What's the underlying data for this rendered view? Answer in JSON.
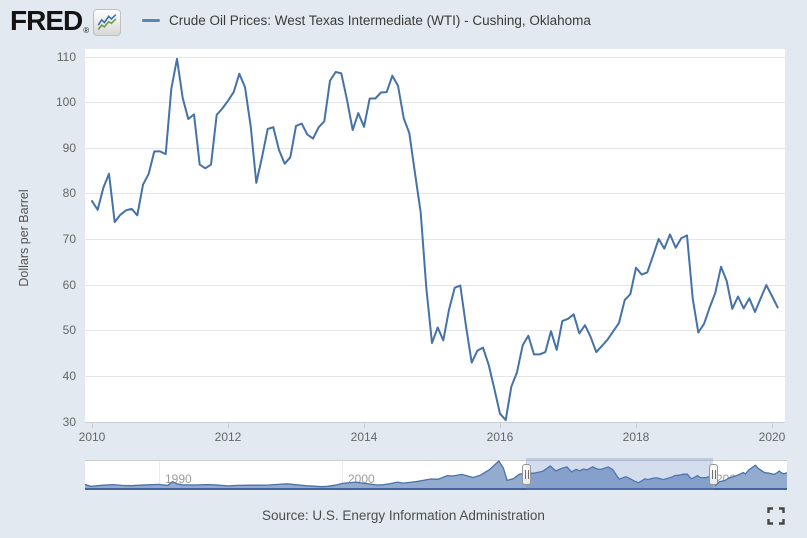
{
  "header": {
    "logo_text": "FRED",
    "registered_mark": "®",
    "legend": {
      "series_label": "Crude Oil Prices: West Texas Intermediate (WTI) - Cushing, Oklahoma",
      "series_color": "#4572a7"
    }
  },
  "chart_data": {
    "type": "line",
    "title": "Crude Oil Prices: West Texas Intermediate (WTI) - Cushing, Oklahoma",
    "xlabel": "",
    "ylabel": "Dollars per Barrel",
    "grid": "horizontal-only",
    "line_color": "#4572a7",
    "plot_background": "#ffffff",
    "page_background": "#e2e9f0",
    "ylim": [
      30,
      110
    ],
    "y_ticks": [
      110,
      100,
      90,
      80,
      70,
      60,
      50,
      40,
      30
    ],
    "x_tick_years": [
      2010,
      2012,
      2014,
      2016,
      2018,
      2020
    ],
    "x_start": "2010-01",
    "x_step_months": 1,
    "values": [
      78.3,
      76.4,
      81.2,
      84.3,
      73.7,
      75.3,
      76.3,
      76.6,
      75.2,
      81.9,
      84.3,
      89.2,
      89.2,
      88.6,
      102.9,
      109.5,
      100.9,
      96.3,
      97.3,
      86.3,
      85.5,
      86.3,
      97.2,
      98.6,
      100.3,
      102.2,
      106.2,
      103.3,
      94.7,
      82.3,
      87.9,
      94.1,
      94.5,
      89.5,
      86.5,
      87.9,
      94.8,
      95.3,
      92.9,
      92.0,
      94.5,
      95.8,
      104.7,
      106.6,
      106.3,
      100.5,
      93.9,
      97.6,
      94.6,
      100.8,
      100.8,
      102.1,
      102.2,
      105.8,
      103.6,
      96.5,
      93.2,
      84.4,
      75.8,
      59.3,
      47.2,
      50.6,
      47.8,
      54.5,
      59.3,
      59.8,
      50.9,
      42.9,
      45.5,
      46.2,
      42.4,
      37.2,
      31.7,
      30.3,
      37.6,
      40.8,
      46.7,
      48.8,
      44.7,
      44.7,
      45.2,
      49.8,
      45.7,
      52.0,
      52.5,
      53.5,
      49.3,
      51.1,
      48.5,
      45.2,
      46.6,
      48.0,
      49.8,
      51.6,
      56.6,
      57.9,
      63.7,
      62.2,
      62.7,
      66.3,
      70.0,
      67.9,
      71.0,
      68.1,
      70.2,
      70.8,
      57.0,
      49.5,
      51.4,
      55.0,
      58.2,
      63.9,
      60.8,
      54.7,
      57.4,
      54.8,
      57.0,
      54.0,
      57.0,
      59.9,
      57.5,
      55.0
    ],
    "navigator": {
      "type": "area",
      "xlim": [
        1986.0,
        2024.17
      ],
      "selected_range": [
        2010.0,
        2020.17
      ],
      "x_tick_years": [
        1990,
        2000,
        2010,
        2020
      ],
      "area_fill": "#92abce",
      "area_line": "#4a72a8",
      "mask_fill": "rgba(102,133,194,0.28)",
      "x": [
        1986.0,
        1986.3,
        1986.6,
        1987.0,
        1987.5,
        1988.0,
        1988.5,
        1989.0,
        1989.5,
        1990.0,
        1990.5,
        1990.75,
        1991.0,
        1991.3,
        1992.0,
        1992.5,
        1993.0,
        1993.8,
        1994.3,
        1995.0,
        1995.5,
        1996.0,
        1996.8,
        1997.0,
        1997.5,
        1998.0,
        1998.9,
        1999.2,
        1999.6,
        2000.0,
        2000.7,
        2001.0,
        2001.9,
        2002.2,
        2002.6,
        2003.0,
        2003.3,
        2004.0,
        2004.8,
        2005.2,
        2005.7,
        2006.0,
        2006.5,
        2006.9,
        2007.1,
        2007.5,
        2008.0,
        2008.5,
        2008.75,
        2008.95,
        2009.3,
        2009.6,
        2010.0,
        2010.4,
        2010.9,
        2011.3,
        2011.6,
        2011.9,
        2012.2,
        2012.45,
        2012.7,
        2012.9,
        2013.1,
        2013.3,
        2013.6,
        2013.9,
        2014.1,
        2014.45,
        2014.7,
        2014.95,
        2015.05,
        2015.4,
        2015.6,
        2015.9,
        2016.1,
        2016.45,
        2016.6,
        2016.9,
        2017.1,
        2017.45,
        2017.95,
        2018.05,
        2018.3,
        2018.55,
        2018.75,
        2018.95,
        2019.05,
        2019.3,
        2019.45,
        2019.75,
        2019.95,
        2020.05,
        2020.15,
        2020.3,
        2020.5,
        2020.8,
        2021.0,
        2021.4,
        2021.8,
        2021.9,
        2022.1,
        2022.45,
        2022.6,
        2022.75,
        2022.95,
        2023.2,
        2023.45,
        2023.6,
        2023.75,
        2023.85,
        2024.0,
        2024.17
      ],
      "values": [
        22,
        13,
        15,
        18,
        21,
        17,
        16,
        18,
        20,
        22,
        17,
        35,
        25,
        20,
        19,
        21,
        20,
        15,
        17,
        18,
        18,
        19,
        24,
        25,
        20,
        16,
        11,
        13,
        18,
        27,
        33,
        29,
        19,
        20,
        26,
        33,
        28,
        35,
        48,
        47,
        64,
        62,
        70,
        60,
        55,
        66,
        93,
        134,
        100,
        41,
        50,
        70,
        78,
        75,
        85,
        110,
        86,
        98,
        106,
        82,
        94,
        87,
        95,
        92,
        106,
        94,
        95,
        106,
        93,
        59,
        47,
        59,
        51,
        37,
        30,
        49,
        45,
        52,
        53,
        45,
        58,
        64,
        66,
        71,
        71,
        50,
        51,
        64,
        55,
        54,
        60,
        57,
        51,
        17,
        35,
        41,
        52,
        63,
        79,
        72,
        92,
        114,
        99,
        90,
        78,
        76,
        70,
        76,
        86,
        78,
        73,
        78
      ]
    }
  },
  "footer": {
    "source": "Source: U.S. Energy Information Administration"
  }
}
